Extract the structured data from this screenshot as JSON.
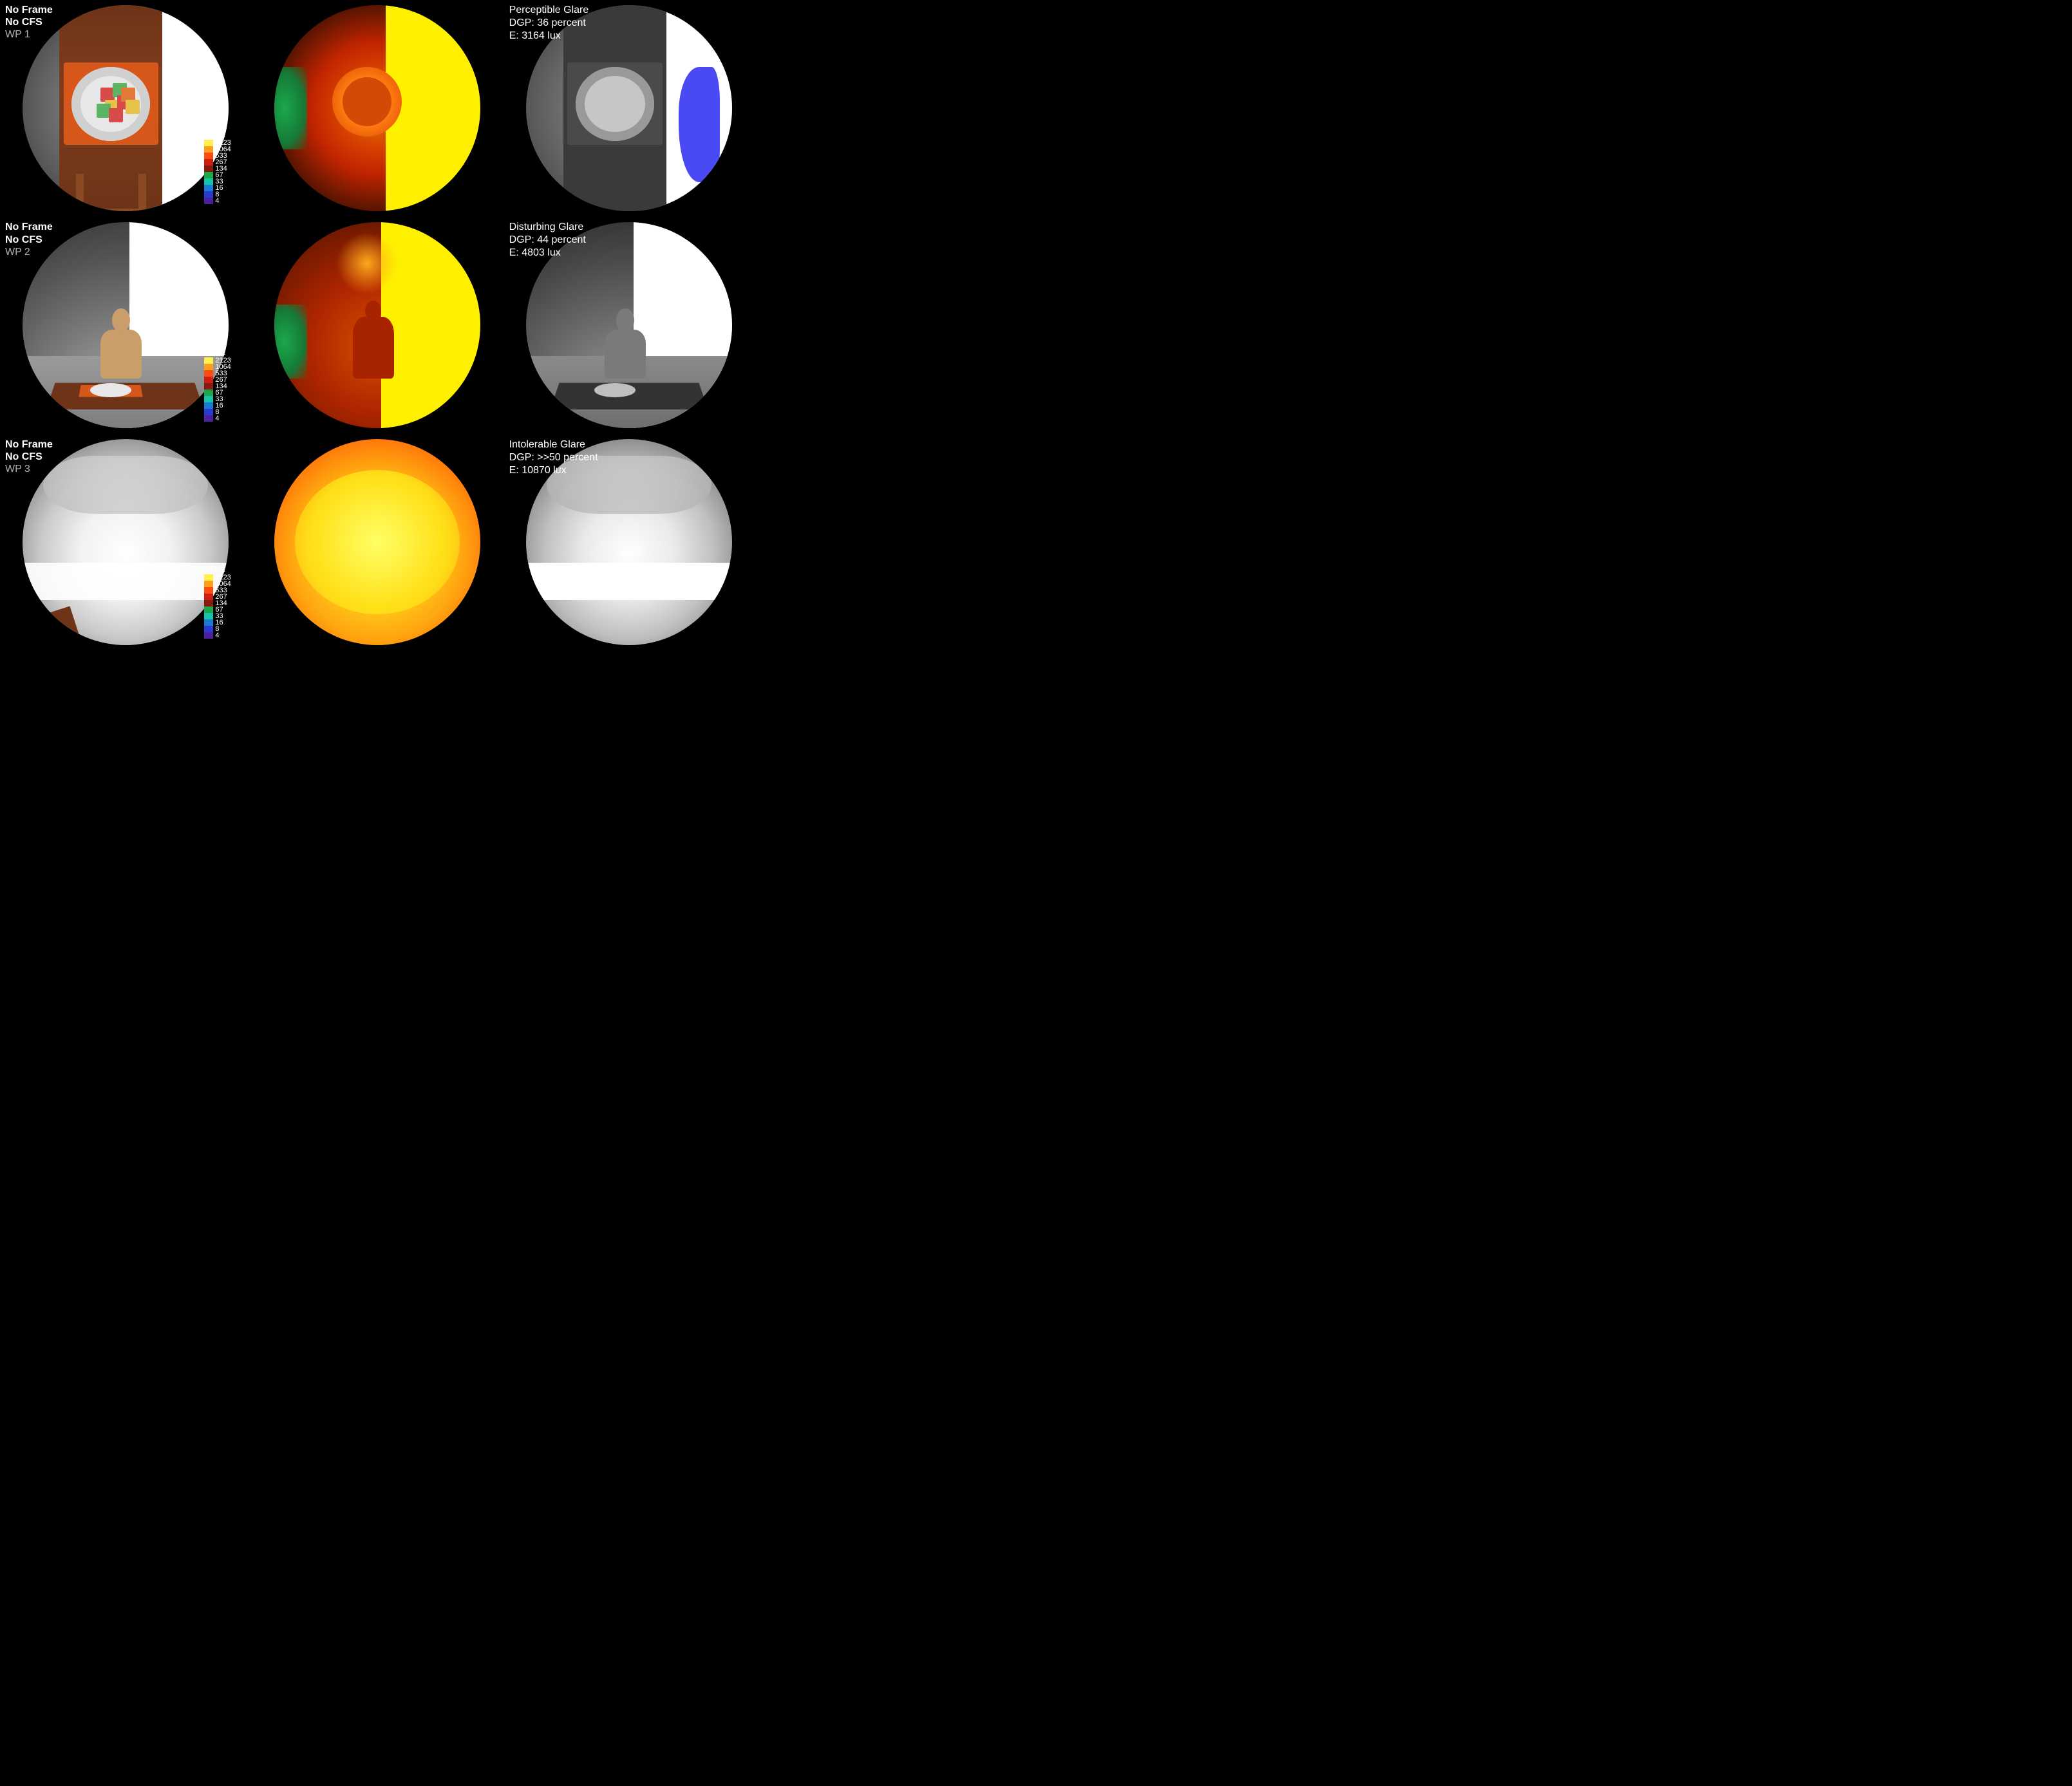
{
  "rows": [
    {
      "left_label": {
        "line1": "No Frame",
        "line2": "No CFS",
        "wp": "WP 1"
      },
      "right_label": {
        "glare": "Perceptible Glare",
        "dgp": "DGP: 36 percent",
        "illum": "E: 3164 lux"
      }
    },
    {
      "left_label": {
        "line1": "No Frame",
        "line2": "No CFS",
        "wp": "WP 2"
      },
      "right_label": {
        "glare": "Disturbing Glare",
        "dgp": "DGP: 44 percent",
        "illum": "E: 4803 lux"
      }
    },
    {
      "left_label": {
        "line1": "No Frame",
        "line2": "No CFS",
        "wp": "WP 3"
      },
      "right_label": {
        "glare": "Intolerable Glare",
        "dgp": "DGP: >>50 percent",
        "illum": "E: 10870 lux"
      }
    }
  ],
  "scale": {
    "unit": "cd/m2",
    "stops": [
      {
        "v": "2123",
        "c": "#fff04a"
      },
      {
        "v": "1064",
        "c": "#ff9e1a"
      },
      {
        "v": "533",
        "c": "#ff4a10"
      },
      {
        "v": "267",
        "c": "#cc2010"
      },
      {
        "v": "134",
        "c": "#8a1a10"
      },
      {
        "v": "67",
        "c": "#1ba84a"
      },
      {
        "v": "33",
        "c": "#16c4a8"
      },
      {
        "v": "16",
        "c": "#1a7ad4"
      },
      {
        "v": "8",
        "c": "#2a3ad0"
      },
      {
        "v": "4",
        "c": "#4a20a0"
      }
    ]
  },
  "food_cubes": [
    {
      "l": 38,
      "t": 40,
      "c": "#d94a4a"
    },
    {
      "l": 44,
      "t": 38,
      "c": "#5ab464"
    },
    {
      "l": 40,
      "t": 46,
      "c": "#e6c24a"
    },
    {
      "l": 46,
      "t": 44,
      "c": "#d94a4a"
    },
    {
      "l": 36,
      "t": 48,
      "c": "#5ab464"
    },
    {
      "l": 48,
      "t": 40,
      "c": "#e07a36"
    },
    {
      "l": 42,
      "t": 50,
      "c": "#d94a4a"
    },
    {
      "l": 50,
      "t": 46,
      "c": "#e6c24a"
    }
  ],
  "colors": {
    "black": "#000000",
    "white": "#ffffff",
    "wood": "#6e3418",
    "mat": "#d7571b",
    "skin": "#c99e6a",
    "glare_mask": "#4a4af5"
  }
}
